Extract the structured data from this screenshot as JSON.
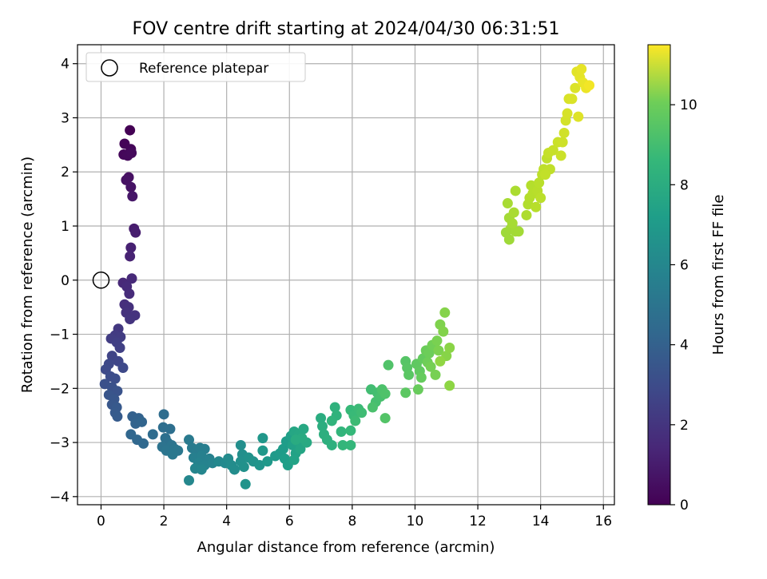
{
  "chart_data": {
    "type": "scatter",
    "title": "FOV centre drift starting at 2024/04/30 06:31:51",
    "xlabel": "Angular distance from reference (arcmin)",
    "ylabel": "Rotation from reference (arcmin)",
    "xlim": [
      -0.75,
      16.35
    ],
    "ylim": [
      -4.15,
      4.35
    ],
    "xticks": [
      0,
      2,
      4,
      6,
      8,
      10,
      12,
      14,
      16
    ],
    "yticks": [
      -4,
      -3,
      -2,
      -1,
      0,
      1,
      2,
      3,
      4
    ],
    "grid": true,
    "legend": {
      "position": "top-left",
      "entries": [
        "Reference platepar"
      ]
    },
    "reference_point": {
      "x": 0,
      "y": 0
    },
    "colorbar": {
      "label": "Hours from first FF file",
      "colormap": "viridis",
      "range": [
        0,
        11.5
      ],
      "ticks": [
        0,
        2,
        4,
        6,
        8,
        10
      ]
    },
    "points": [
      [
        0.92,
        2.77,
        0.0
      ],
      [
        0.75,
        2.52,
        0.1
      ],
      [
        0.95,
        2.42,
        0.15
      ],
      [
        0.72,
        2.32,
        0.2
      ],
      [
        0.85,
        2.3,
        0.25
      ],
      [
        0.97,
        2.35,
        0.3
      ],
      [
        0.88,
        1.9,
        0.5
      ],
      [
        0.8,
        1.85,
        0.55
      ],
      [
        0.95,
        1.72,
        0.6
      ],
      [
        1.0,
        1.55,
        0.7
      ],
      [
        1.05,
        0.95,
        0.9
      ],
      [
        1.1,
        0.88,
        0.95
      ],
      [
        0.95,
        0.6,
        1.05
      ],
      [
        0.92,
        0.44,
        1.1
      ],
      [
        0.7,
        -0.05,
        1.3
      ],
      [
        0.98,
        0.03,
        1.35
      ],
      [
        0.82,
        -0.12,
        1.4
      ],
      [
        0.9,
        -0.25,
        1.45
      ],
      [
        0.75,
        -0.45,
        1.55
      ],
      [
        0.88,
        -0.5,
        1.6
      ],
      [
        0.8,
        -0.6,
        1.65
      ],
      [
        1.08,
        -0.65,
        1.7
      ],
      [
        0.92,
        -0.72,
        1.75
      ],
      [
        0.55,
        -0.9,
        1.9
      ],
      [
        0.45,
        -1.02,
        2.0
      ],
      [
        0.62,
        -1.05,
        2.05
      ],
      [
        0.32,
        -1.08,
        2.1
      ],
      [
        0.5,
        -1.15,
        2.15
      ],
      [
        0.6,
        -1.25,
        2.2
      ],
      [
        0.35,
        -1.4,
        2.35
      ],
      [
        0.55,
        -1.5,
        2.45
      ],
      [
        0.25,
        -1.55,
        2.5
      ],
      [
        0.7,
        -1.62,
        2.55
      ],
      [
        0.15,
        -1.65,
        2.6
      ],
      [
        0.3,
        -1.78,
        2.7
      ],
      [
        0.45,
        -1.82,
        2.75
      ],
      [
        0.12,
        -1.92,
        2.85
      ],
      [
        0.35,
        -1.98,
        2.9
      ],
      [
        0.52,
        -2.05,
        2.95
      ],
      [
        0.25,
        -2.12,
        3.05
      ],
      [
        0.42,
        -2.2,
        3.1
      ],
      [
        0.35,
        -2.3,
        3.15
      ],
      [
        0.5,
        -2.35,
        3.2
      ],
      [
        0.45,
        -2.45,
        3.25
      ],
      [
        0.52,
        -2.52,
        3.3
      ],
      [
        1.0,
        -2.52,
        3.55
      ],
      [
        1.2,
        -2.55,
        3.6
      ],
      [
        1.1,
        -2.65,
        3.65
      ],
      [
        1.3,
        -2.62,
        3.7
      ],
      [
        0.95,
        -2.85,
        3.8
      ],
      [
        1.15,
        -2.95,
        3.85
      ],
      [
        1.35,
        -3.02,
        3.9
      ],
      [
        1.65,
        -2.85,
        4.05
      ],
      [
        2.0,
        -2.48,
        4.1
      ],
      [
        1.98,
        -2.72,
        4.15
      ],
      [
        2.2,
        -2.75,
        4.2
      ],
      [
        2.05,
        -2.92,
        4.25
      ],
      [
        2.12,
        -3.0,
        4.3
      ],
      [
        1.95,
        -3.08,
        4.35
      ],
      [
        2.25,
        -3.05,
        4.4
      ],
      [
        2.08,
        -3.15,
        4.45
      ],
      [
        2.35,
        -3.12,
        4.5
      ],
      [
        2.45,
        -3.15,
        4.55
      ],
      [
        2.28,
        -3.22,
        4.6
      ],
      [
        2.8,
        -2.95,
        4.7
      ],
      [
        2.9,
        -3.1,
        4.75
      ],
      [
        3.05,
        -3.15,
        4.8
      ],
      [
        3.15,
        -3.1,
        4.85
      ],
      [
        3.3,
        -3.12,
        4.9
      ],
      [
        2.95,
        -3.28,
        4.95
      ],
      [
        3.2,
        -3.25,
        5.0
      ],
      [
        3.45,
        -3.3,
        5.05
      ],
      [
        3.1,
        -3.38,
        5.1
      ],
      [
        3.3,
        -3.42,
        5.15
      ],
      [
        3.55,
        -3.38,
        5.2
      ],
      [
        3.0,
        -3.48,
        5.25
      ],
      [
        3.2,
        -3.5,
        5.3
      ],
      [
        2.8,
        -3.7,
        5.35
      ],
      [
        3.75,
        -3.35,
        5.4
      ],
      [
        3.95,
        -3.38,
        5.45
      ],
      [
        4.05,
        -3.3,
        5.5
      ],
      [
        4.15,
        -3.42,
        5.55
      ],
      [
        4.25,
        -3.5,
        5.6
      ],
      [
        4.45,
        -3.05,
        5.65
      ],
      [
        4.5,
        -3.22,
        5.7
      ],
      [
        4.45,
        -3.35,
        5.75
      ],
      [
        4.55,
        -3.45,
        5.8
      ],
      [
        4.7,
        -3.28,
        5.85
      ],
      [
        4.85,
        -3.35,
        5.9
      ],
      [
        4.6,
        -3.77,
        5.95
      ],
      [
        5.05,
        -3.42,
        6.0
      ],
      [
        5.15,
        -2.92,
        6.05
      ],
      [
        5.15,
        -3.15,
        6.1
      ],
      [
        5.3,
        -3.35,
        6.15
      ],
      [
        5.55,
        -3.25,
        6.2
      ],
      [
        5.7,
        -3.2,
        6.25
      ],
      [
        5.8,
        -3.12,
        6.3
      ],
      [
        5.9,
        -2.98,
        6.35
      ],
      [
        5.85,
        -3.3,
        6.4
      ],
      [
        5.95,
        -3.42,
        6.45
      ],
      [
        6.05,
        -2.88,
        6.5
      ],
      [
        6.1,
        -3.05,
        6.55
      ],
      [
        6.2,
        -3.2,
        6.6
      ],
      [
        6.15,
        -3.32,
        6.65
      ],
      [
        6.25,
        -2.98,
        6.7
      ],
      [
        6.35,
        -3.12,
        6.75
      ],
      [
        6.15,
        -2.8,
        6.8
      ],
      [
        6.3,
        -2.85,
        6.85
      ],
      [
        6.45,
        -2.75,
        6.9
      ],
      [
        6.55,
        -3.0,
        6.95
      ],
      [
        6.4,
        -2.92,
        7.0
      ],
      [
        6.2,
        -2.95,
        7.05
      ],
      [
        7.0,
        -2.55,
        7.1
      ],
      [
        7.05,
        -2.7,
        7.15
      ],
      [
        7.1,
        -2.85,
        7.2
      ],
      [
        7.2,
        -2.95,
        7.25
      ],
      [
        7.35,
        -3.05,
        7.3
      ],
      [
        7.45,
        -2.35,
        7.35
      ],
      [
        7.5,
        -2.5,
        7.4
      ],
      [
        7.35,
        -2.6,
        7.45
      ],
      [
        7.65,
        -2.8,
        7.5
      ],
      [
        7.7,
        -3.05,
        7.55
      ],
      [
        7.95,
        -3.05,
        7.6
      ],
      [
        7.95,
        -2.78,
        7.65
      ],
      [
        7.95,
        -2.4,
        7.7
      ],
      [
        8.05,
        -2.5,
        7.75
      ],
      [
        8.2,
        -2.38,
        7.8
      ],
      [
        8.1,
        -2.6,
        7.85
      ],
      [
        8.3,
        -2.45,
        7.9
      ],
      [
        8.6,
        -2.02,
        7.95
      ],
      [
        8.8,
        -2.08,
        8.0
      ],
      [
        8.75,
        -2.25,
        8.05
      ],
      [
        8.9,
        -2.15,
        8.1
      ],
      [
        8.65,
        -2.35,
        8.15
      ],
      [
        8.95,
        -2.02,
        8.2
      ],
      [
        9.05,
        -2.1,
        8.25
      ],
      [
        9.15,
        -1.57,
        8.3
      ],
      [
        9.05,
        -2.55,
        8.35
      ],
      [
        9.7,
        -1.5,
        8.4
      ],
      [
        9.75,
        -1.62,
        8.45
      ],
      [
        9.8,
        -1.75,
        8.5
      ],
      [
        9.7,
        -2.08,
        8.55
      ],
      [
        10.05,
        -1.55,
        8.6
      ],
      [
        10.15,
        -1.68,
        8.65
      ],
      [
        10.25,
        -1.45,
        8.7
      ],
      [
        10.2,
        -1.8,
        8.75
      ],
      [
        10.1,
        -2.02,
        8.8
      ],
      [
        10.35,
        -1.3,
        8.85
      ],
      [
        10.45,
        -1.35,
        8.9
      ],
      [
        10.4,
        -1.52,
        8.95
      ],
      [
        10.55,
        -1.2,
        9.0
      ],
      [
        10.5,
        -1.6,
        9.05
      ],
      [
        10.65,
        -1.75,
        9.1
      ],
      [
        10.7,
        -1.12,
        9.15
      ],
      [
        10.75,
        -1.3,
        9.2
      ],
      [
        10.8,
        -0.82,
        9.25
      ],
      [
        10.9,
        -0.95,
        9.3
      ],
      [
        10.95,
        -0.6,
        9.35
      ],
      [
        11.0,
        -1.4,
        9.4
      ],
      [
        11.1,
        -1.25,
        9.45
      ],
      [
        11.1,
        -1.95,
        9.5
      ],
      [
        10.8,
        -1.5,
        9.55
      ],
      [
        12.9,
        0.88,
        9.8
      ],
      [
        13.0,
        0.75,
        9.82
      ],
      [
        13.05,
        0.95,
        9.85
      ],
      [
        13.2,
        0.9,
        9.88
      ],
      [
        13.3,
        0.9,
        9.9
      ],
      [
        13.0,
        1.15,
        9.92
      ],
      [
        13.1,
        1.05,
        9.95
      ],
      [
        12.95,
        1.42,
        9.98
      ],
      [
        13.15,
        1.25,
        10.0
      ],
      [
        13.2,
        1.65,
        10.05
      ],
      [
        13.55,
        1.2,
        10.1
      ],
      [
        13.6,
        1.4,
        10.15
      ],
      [
        13.65,
        1.52,
        10.18
      ],
      [
        13.7,
        1.75,
        10.2
      ],
      [
        13.75,
        1.6,
        10.22
      ],
      [
        13.85,
        1.35,
        10.25
      ],
      [
        13.9,
        1.65,
        10.28
      ],
      [
        13.95,
        1.8,
        10.3
      ],
      [
        14.0,
        1.52,
        10.32
      ],
      [
        14.05,
        1.95,
        10.35
      ],
      [
        14.1,
        2.05,
        10.38
      ],
      [
        14.2,
        2.25,
        10.4
      ],
      [
        14.3,
        2.05,
        10.42
      ],
      [
        14.15,
        1.95,
        10.45
      ],
      [
        14.25,
        2.35,
        10.5
      ],
      [
        14.4,
        2.4,
        10.55
      ],
      [
        14.55,
        2.55,
        10.6
      ],
      [
        14.65,
        2.3,
        10.62
      ],
      [
        14.7,
        2.55,
        10.65
      ],
      [
        14.75,
        2.72,
        10.7
      ],
      [
        14.8,
        2.95,
        10.75
      ],
      [
        14.85,
        3.08,
        10.8
      ],
      [
        14.9,
        3.35,
        10.85
      ],
      [
        15.0,
        3.35,
        10.88
      ],
      [
        15.1,
        3.55,
        10.9
      ],
      [
        15.2,
        3.02,
        10.95
      ],
      [
        15.15,
        3.85,
        11.0
      ],
      [
        15.25,
        3.75,
        11.05
      ],
      [
        15.3,
        3.9,
        11.1
      ],
      [
        15.35,
        3.65,
        11.15
      ],
      [
        15.45,
        3.55,
        11.2
      ],
      [
        15.55,
        3.6,
        11.3
      ]
    ]
  }
}
